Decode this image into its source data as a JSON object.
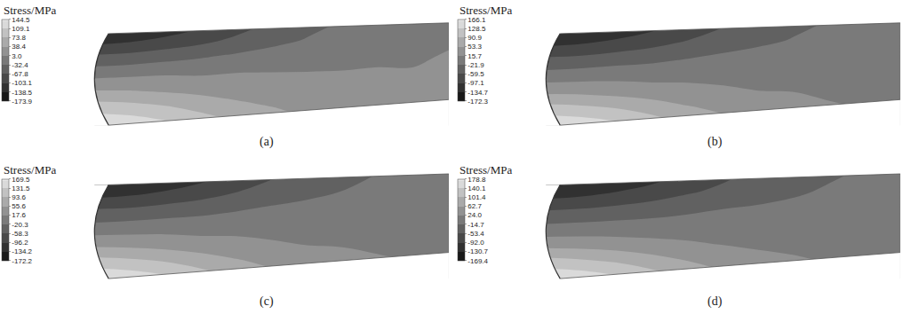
{
  "chart_data": [
    {
      "type": "contour",
      "title": "(a)",
      "colorbar_title": "Stress/MPa",
      "tick_labels": false,
      "zlim": [
        -173.9,
        144.5
      ],
      "colorbar_ticks": [
        144.5,
        109.1,
        73.8,
        38.4,
        {
          "value": 3,
          "label": "3.0"
        },
        -32.4,
        -67.8,
        -103.1,
        -138.5,
        -173.9
      ],
      "z": [
        [
          -170,
          -160,
          -140,
          -115,
          -90,
          -65,
          -45,
          -30,
          -20,
          -10,
          -5
        ],
        [
          -120,
          -110,
          -95,
          -80,
          -60,
          -45,
          -30,
          -20,
          -10,
          -5,
          0
        ],
        [
          -60,
          -55,
          -45,
          -35,
          -25,
          -15,
          -10,
          -5,
          0,
          0,
          5
        ],
        [
          -10,
          -5,
          0,
          0,
          5,
          5,
          5,
          5,
          5,
          5,
          5
        ],
        [
          40,
          40,
          35,
          30,
          25,
          20,
          15,
          15,
          10,
          10,
          10
        ],
        [
          95,
          90,
          80,
          65,
          50,
          40,
          30,
          25,
          20,
          15,
          10
        ],
        [
          140,
          135,
          120,
          100,
          80,
          60,
          45,
          35,
          25,
          20,
          15
        ]
      ]
    },
    {
      "type": "contour",
      "title": "(b)",
      "colorbar_title": "Stress/MPa",
      "tick_labels": false,
      "zlim": [
        -172.3,
        166.1
      ],
      "colorbar_ticks": [
        166.1,
        128.5,
        90.9,
        53.3,
        15.7,
        -21.9,
        -59.5,
        -97.1,
        -134.7,
        -172.3
      ],
      "z": [
        [
          -170,
          -160,
          -140,
          -115,
          -90,
          -65,
          -45,
          -30,
          -20,
          -10,
          -5
        ],
        [
          -120,
          -110,
          -95,
          -80,
          -60,
          -45,
          -30,
          -20,
          -10,
          -5,
          0
        ],
        [
          -60,
          -55,
          -45,
          -35,
          -25,
          -15,
          -10,
          -5,
          0,
          0,
          5
        ],
        [
          -10,
          -5,
          0,
          0,
          5,
          5,
          5,
          5,
          5,
          5,
          5
        ],
        [
          42,
          42,
          37,
          32,
          26,
          21,
          16,
          15,
          10,
          10,
          10
        ],
        [
          105,
          100,
          90,
          75,
          58,
          45,
          35,
          28,
          20,
          15,
          10
        ],
        [
          160,
          155,
          140,
          115,
          90,
          70,
          50,
          40,
          30,
          20,
          15
        ]
      ]
    },
    {
      "type": "contour",
      "title": "(c)",
      "colorbar_title": "Stress/MPa",
      "tick_labels": false,
      "zlim": [
        -172.2,
        169.5
      ],
      "colorbar_ticks": [
        169.5,
        131.5,
        93.6,
        55.6,
        17.6,
        -20.3,
        -58.3,
        -96.2,
        -134.2,
        -172.2
      ],
      "z": [
        [
          -170,
          -160,
          -140,
          -115,
          -90,
          -65,
          -45,
          -30,
          -20,
          -10,
          -5
        ],
        [
          -120,
          -110,
          -95,
          -80,
          -60,
          -45,
          -30,
          -20,
          -10,
          -5,
          0
        ],
        [
          -60,
          -55,
          -45,
          -35,
          -25,
          -15,
          -10,
          -5,
          0,
          0,
          5
        ],
        [
          -10,
          -5,
          0,
          0,
          5,
          5,
          5,
          5,
          5,
          5,
          5
        ],
        [
          43,
          42,
          38,
          32,
          27,
          21,
          16,
          15,
          11,
          10,
          10
        ],
        [
          108,
          102,
          92,
          76,
          60,
          46,
          35,
          28,
          22,
          16,
          12
        ],
        [
          165,
          158,
          142,
          118,
          92,
          70,
          52,
          40,
          30,
          22,
          15
        ]
      ]
    },
    {
      "type": "contour",
      "title": "(d)",
      "colorbar_title": "Stress/MPa",
      "tick_labels": false,
      "zlim": [
        -169.4,
        178.8
      ],
      "colorbar_ticks": [
        178.8,
        140.1,
        101.4,
        62.7,
        {
          "value": 24,
          "label": "24.0"
        },
        -14.7,
        -53.4,
        {
          "value": -92,
          "label": "-92.0"
        },
        -130.7,
        -169.4
      ],
      "z": [
        [
          -168,
          -158,
          -138,
          -113,
          -88,
          -64,
          -44,
          -30,
          -20,
          -10,
          -5
        ],
        [
          -118,
          -108,
          -93,
          -78,
          -59,
          -44,
          -30,
          -20,
          -10,
          -5,
          0
        ],
        [
          -58,
          -53,
          -44,
          -34,
          -24,
          -15,
          -10,
          -5,
          0,
          0,
          5
        ],
        [
          -8,
          -4,
          0,
          2,
          5,
          5,
          5,
          5,
          5,
          5,
          5
        ],
        [
          45,
          44,
          40,
          34,
          28,
          22,
          17,
          15,
          12,
          10,
          10
        ],
        [
          115,
          108,
          97,
          80,
          63,
          48,
          37,
          29,
          22,
          16,
          12
        ],
        [
          175,
          168,
          150,
          125,
          98,
          75,
          55,
          42,
          32,
          24,
          16
        ]
      ]
    }
  ]
}
